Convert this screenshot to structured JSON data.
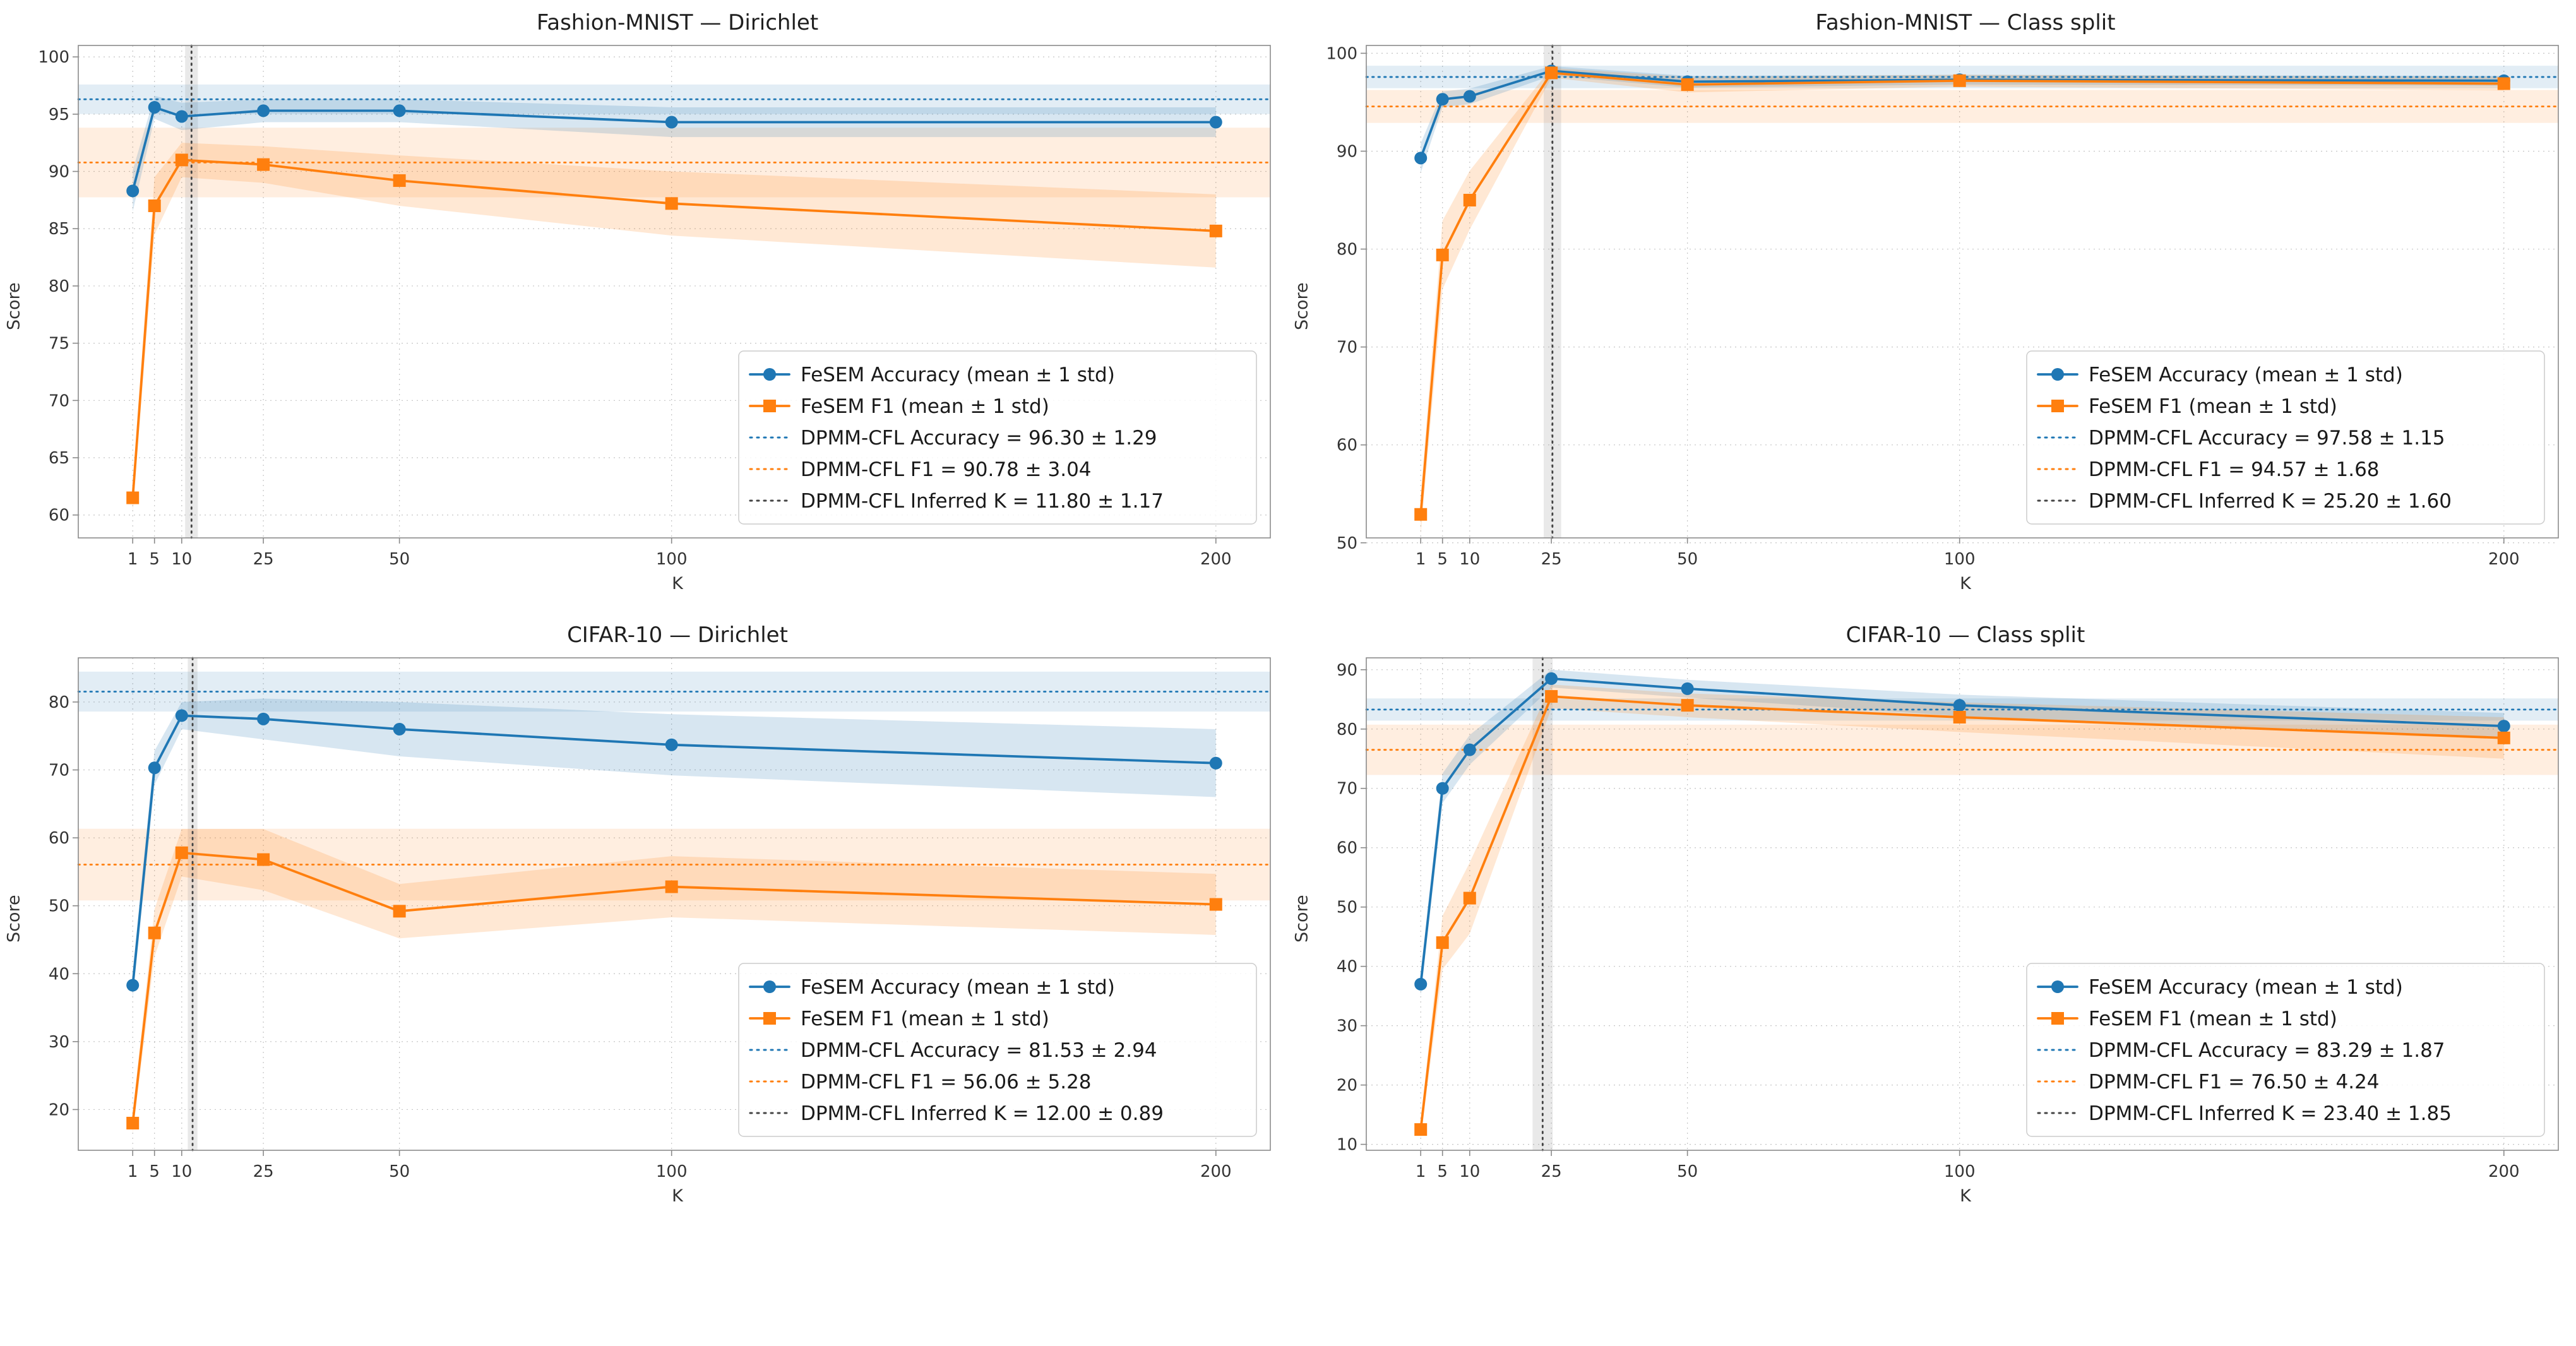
{
  "page": {
    "background": "#ffffff"
  },
  "colors": {
    "accuracy": "#1f77b4",
    "f1": "#ff7f0e",
    "inferred_k": "#444444",
    "grid": "#c4c4c4",
    "spine": "#8a8a8a",
    "tick_text": "#333333",
    "legend_border": "#cccccc",
    "text": "#1a1a1a"
  },
  "chart_data": [
    {
      "type": "line",
      "title": "Fashion-MNIST — Dirichlet",
      "xlabel": "K",
      "ylabel": "Score",
      "x": [
        1,
        5,
        10,
        25,
        50,
        100,
        200
      ],
      "xticks": [
        1,
        5,
        10,
        25,
        50,
        100,
        200
      ],
      "xlim": [
        -9,
        210
      ],
      "ylim": [
        58,
        101
      ],
      "yticks": [
        60,
        65,
        70,
        75,
        80,
        85,
        90,
        95,
        100
      ],
      "grid": true,
      "legend_position": "lower right",
      "series": [
        {
          "name": "FeSEM Accuracy (mean ± 1 std)",
          "color": "#1f77b4",
          "marker": "circle",
          "values": [
            88.3,
            95.6,
            94.8,
            95.3,
            95.3,
            94.3,
            94.3
          ],
          "std": [
            1.8,
            1.0,
            1.2,
            1.0,
            1.0,
            1.3,
            1.3
          ]
        },
        {
          "name": "FeSEM F1 (mean ± 1 std)",
          "color": "#ff7f0e",
          "marker": "square",
          "values": [
            61.5,
            87.0,
            91.0,
            90.6,
            89.2,
            87.2,
            84.8
          ],
          "std": [
            1.2,
            2.5,
            1.5,
            1.6,
            2.2,
            2.8,
            3.2
          ]
        }
      ],
      "hlines": [
        {
          "label": "DPMM-CFL Accuracy = 96.30 ± 1.29",
          "value": 96.3,
          "std": 1.29,
          "color": "#1f77b4"
        },
        {
          "label": "DPMM-CFL F1 = 90.78 ± 3.04",
          "value": 90.78,
          "std": 3.04,
          "color": "#ff7f0e"
        }
      ],
      "vline": {
        "label": "DPMM-CFL Inferred K = 11.80 ± 1.17",
        "value": 11.8,
        "std": 1.17,
        "color": "#444444"
      }
    },
    {
      "type": "line",
      "title": "Fashion-MNIST — Class split",
      "xlabel": "K",
      "ylabel": "Score",
      "x": [
        1,
        5,
        10,
        25,
        50,
        100,
        200
      ],
      "xticks": [
        1,
        5,
        10,
        25,
        50,
        100,
        200
      ],
      "xlim": [
        -9,
        210
      ],
      "ylim": [
        50.5,
        100.8
      ],
      "yticks": [
        50,
        60,
        70,
        80,
        90,
        100
      ],
      "grid": true,
      "legend_position": "lower right",
      "series": [
        {
          "name": "FeSEM Accuracy (mean ± 1 std)",
          "color": "#1f77b4",
          "marker": "circle",
          "values": [
            89.3,
            95.3,
            95.6,
            98.2,
            97.1,
            97.3,
            97.2
          ],
          "std": [
            1.5,
            0.8,
            0.8,
            0.5,
            0.6,
            0.5,
            0.5
          ]
        },
        {
          "name": "FeSEM F1 (mean ± 1 std)",
          "color": "#ff7f0e",
          "marker": "square",
          "values": [
            52.9,
            79.4,
            85.0,
            98.0,
            96.8,
            97.2,
            96.9
          ],
          "std": [
            2.0,
            3.5,
            3.0,
            0.5,
            0.8,
            0.6,
            0.7
          ]
        }
      ],
      "hlines": [
        {
          "label": "DPMM-CFL Accuracy = 97.58 ± 1.15",
          "value": 97.58,
          "std": 1.15,
          "color": "#1f77b4"
        },
        {
          "label": "DPMM-CFL F1 = 94.57 ± 1.68",
          "value": 94.57,
          "std": 1.68,
          "color": "#ff7f0e"
        }
      ],
      "vline": {
        "label": "DPMM-CFL Inferred K = 25.20 ± 1.60",
        "value": 25.2,
        "std": 1.6,
        "color": "#444444"
      }
    },
    {
      "type": "line",
      "title": "CIFAR-10 — Dirichlet",
      "xlabel": "K",
      "ylabel": "Score",
      "x": [
        1,
        5,
        10,
        25,
        50,
        100,
        200
      ],
      "xticks": [
        1,
        5,
        10,
        25,
        50,
        100,
        200
      ],
      "xlim": [
        -9,
        210
      ],
      "ylim": [
        14,
        86.5
      ],
      "yticks": [
        20,
        30,
        40,
        50,
        60,
        70,
        80
      ],
      "grid": true,
      "legend_position": "lower right",
      "series": [
        {
          "name": "FeSEM Accuracy (mean ± 1 std)",
          "color": "#1f77b4",
          "marker": "circle",
          "values": [
            38.3,
            70.3,
            78.0,
            77.5,
            76.0,
            73.7,
            71.0
          ],
          "std": [
            2.0,
            2.5,
            2.0,
            3.0,
            4.0,
            4.5,
            5.0
          ]
        },
        {
          "name": "FeSEM F1 (mean ± 1 std)",
          "color": "#ff7f0e",
          "marker": "square",
          "values": [
            18.0,
            46.0,
            57.8,
            56.8,
            49.2,
            52.8,
            50.2
          ],
          "std": [
            1.5,
            3.5,
            3.5,
            4.5,
            4.0,
            4.5,
            4.5
          ]
        }
      ],
      "hlines": [
        {
          "label": "DPMM-CFL Accuracy = 81.53 ± 2.94",
          "value": 81.53,
          "std": 2.94,
          "color": "#1f77b4"
        },
        {
          "label": "DPMM-CFL F1 = 56.06 ± 5.28",
          "value": 56.06,
          "std": 5.28,
          "color": "#ff7f0e"
        }
      ],
      "vline": {
        "label": "DPMM-CFL Inferred K = 12.00 ± 0.89",
        "value": 12.0,
        "std": 0.89,
        "color": "#444444"
      }
    },
    {
      "type": "line",
      "title": "CIFAR-10 — Class split",
      "xlabel": "K",
      "ylabel": "Score",
      "x": [
        1,
        5,
        10,
        25,
        50,
        100,
        200
      ],
      "xticks": [
        1,
        5,
        10,
        25,
        50,
        100,
        200
      ],
      "xlim": [
        -9,
        210
      ],
      "ylim": [
        9,
        92
      ],
      "yticks": [
        10,
        20,
        30,
        40,
        50,
        60,
        70,
        80,
        90
      ],
      "grid": true,
      "legend_position": "lower right",
      "series": [
        {
          "name": "FeSEM Accuracy (mean ± 1 std)",
          "color": "#1f77b4",
          "marker": "circle",
          "values": [
            37.0,
            70.0,
            76.5,
            88.5,
            86.8,
            84.0,
            80.5
          ],
          "std": [
            2.0,
            2.5,
            2.5,
            1.5,
            1.5,
            1.8,
            2.2
          ]
        },
        {
          "name": "FeSEM F1 (mean ± 1 std)",
          "color": "#ff7f0e",
          "marker": "square",
          "values": [
            12.5,
            44.0,
            51.5,
            85.5,
            84.0,
            82.0,
            78.5
          ],
          "std": [
            1.5,
            4.5,
            6.0,
            2.0,
            2.0,
            2.5,
            3.5
          ]
        }
      ],
      "hlines": [
        {
          "label": "DPMM-CFL Accuracy = 83.29 ± 1.87",
          "value": 83.29,
          "std": 1.87,
          "color": "#1f77b4"
        },
        {
          "label": "DPMM-CFL F1 = 76.50 ± 4.24",
          "value": 76.5,
          "std": 4.24,
          "color": "#ff7f0e"
        }
      ],
      "vline": {
        "label": "DPMM-CFL Inferred K = 23.40 ± 1.85",
        "value": 23.4,
        "std": 1.85,
        "color": "#444444"
      }
    }
  ]
}
